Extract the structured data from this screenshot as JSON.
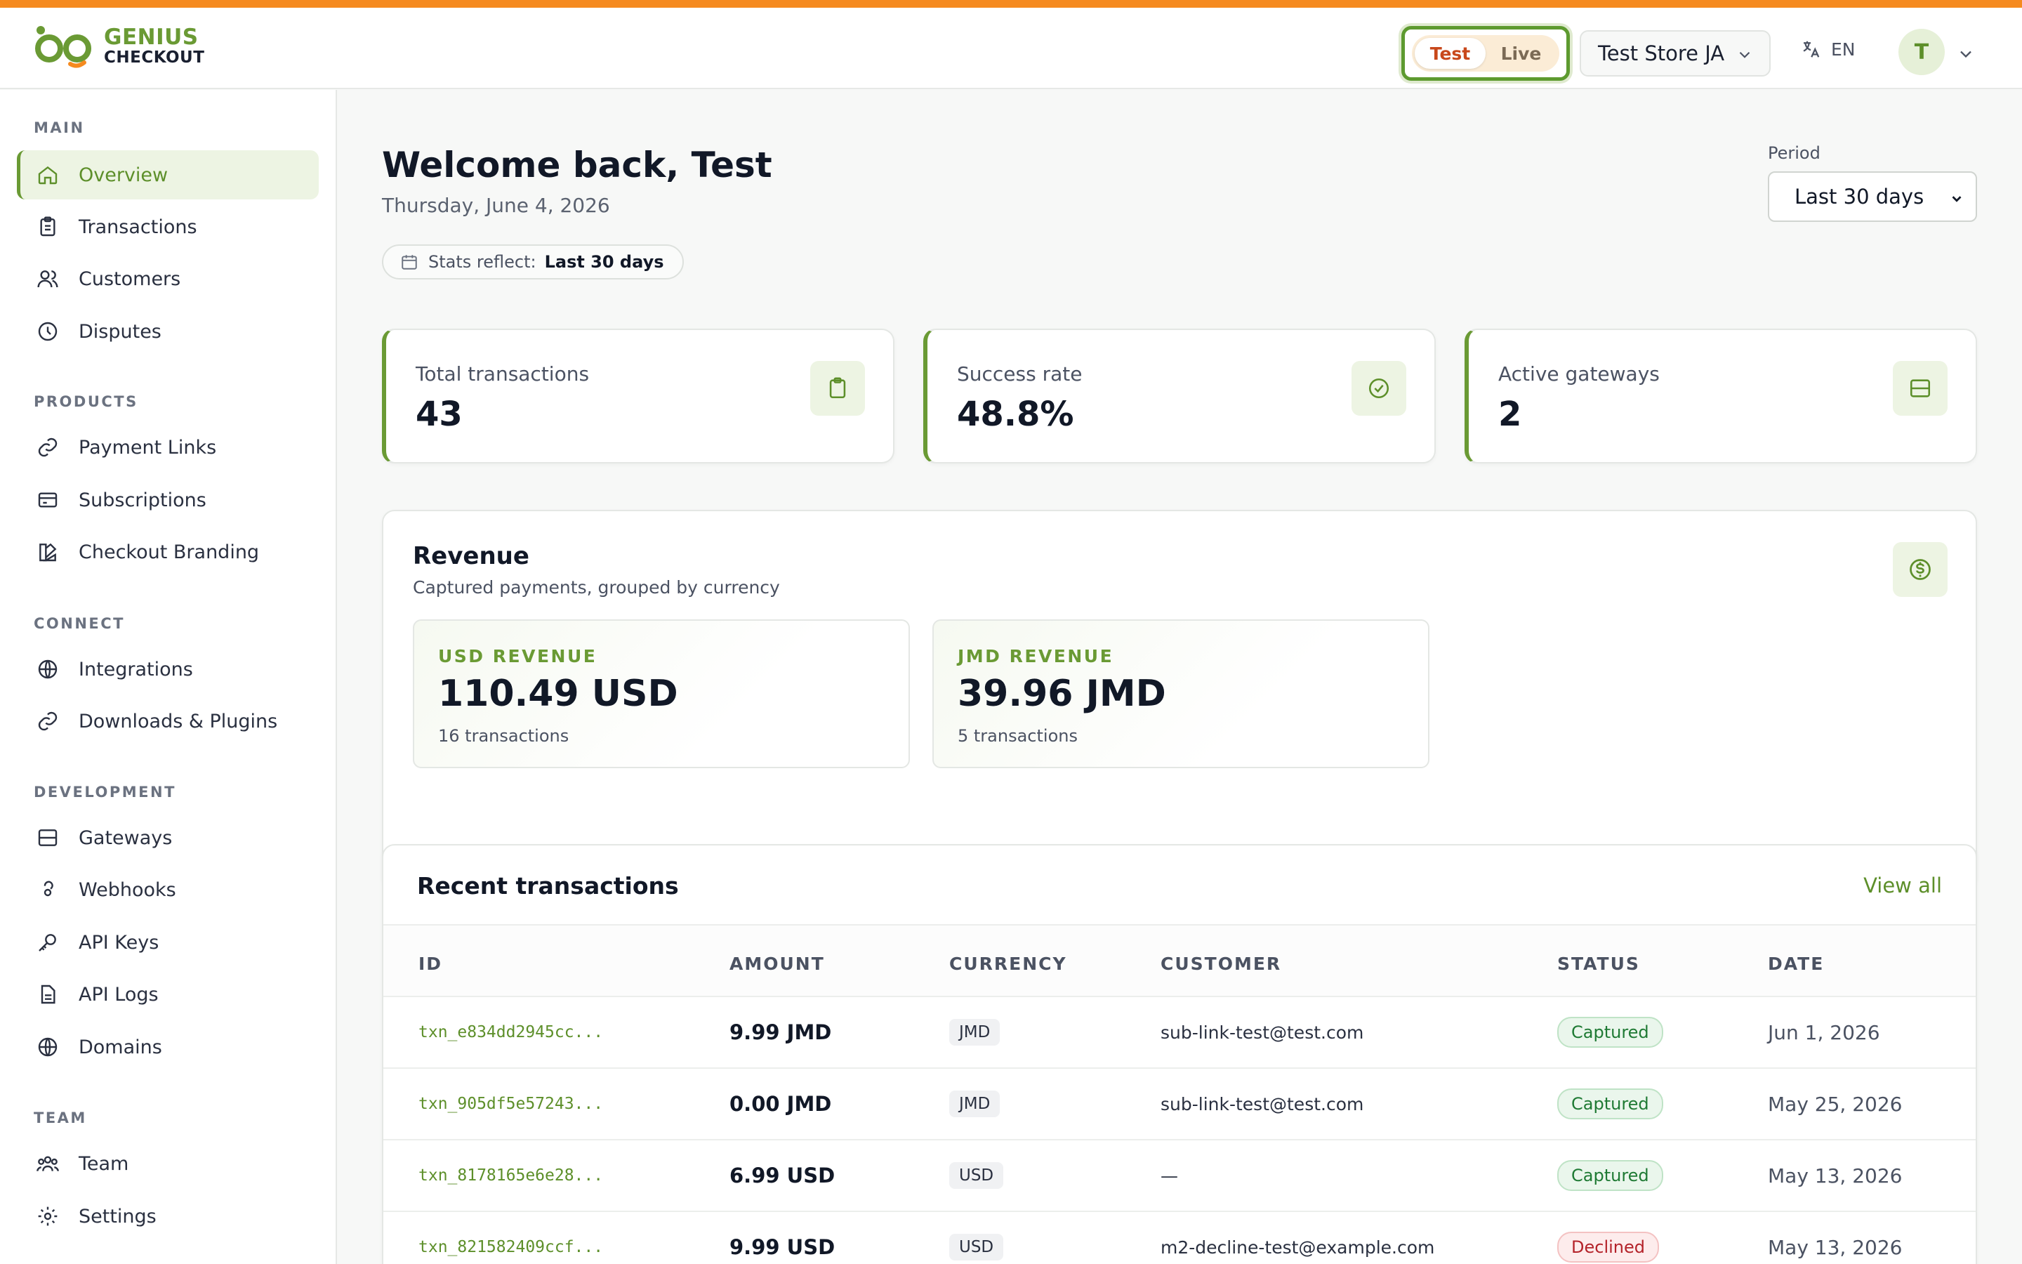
{
  "brand": {
    "line1": "GENIUS",
    "line2": "CHECKOUT"
  },
  "header": {
    "mode_test": "Test",
    "mode_live": "Live",
    "store": "Test Store JA",
    "lang": "EN",
    "avatar_initial": "T"
  },
  "sidebar": {
    "sections": [
      {
        "label": "MAIN",
        "items": [
          {
            "label": "Overview",
            "icon": "home-icon",
            "active": true
          },
          {
            "label": "Transactions",
            "icon": "clipboard-icon"
          },
          {
            "label": "Customers",
            "icon": "users-icon"
          },
          {
            "label": "Disputes",
            "icon": "clock-icon"
          }
        ]
      },
      {
        "label": "PRODUCTS",
        "items": [
          {
            "label": "Payment Links",
            "icon": "link-icon"
          },
          {
            "label": "Subscriptions",
            "icon": "card-icon"
          },
          {
            "label": "Checkout Branding",
            "icon": "palette-icon"
          }
        ]
      },
      {
        "label": "CONNECT",
        "items": [
          {
            "label": "Integrations",
            "icon": "globe-icon"
          },
          {
            "label": "Downloads & Plugins",
            "icon": "link-icon"
          }
        ]
      },
      {
        "label": "DEVELOPMENT",
        "items": [
          {
            "label": "Gateways",
            "icon": "server-icon"
          },
          {
            "label": "Webhooks",
            "icon": "webhook-icon"
          },
          {
            "label": "API Keys",
            "icon": "key-icon"
          },
          {
            "label": "API Logs",
            "icon": "file-icon"
          },
          {
            "label": "Domains",
            "icon": "globe-icon"
          }
        ]
      },
      {
        "label": "TEAM",
        "items": [
          {
            "label": "Team",
            "icon": "team-icon"
          },
          {
            "label": "Settings",
            "icon": "gear-icon"
          }
        ]
      }
    ]
  },
  "main": {
    "welcome": "Welcome back, Test",
    "date": "Thursday, June 4, 2026",
    "stats_reflect_label": "Stats reflect:",
    "stats_reflect_value": "Last 30 days",
    "period_label": "Period",
    "period_value": "Last 30 days",
    "stats": [
      {
        "label": "Total transactions",
        "value": "43",
        "icon": "clipboard-icon"
      },
      {
        "label": "Success rate",
        "value": "48.8%",
        "icon": "check-circle-icon"
      },
      {
        "label": "Active gateways",
        "value": "2",
        "icon": "server-icon"
      }
    ],
    "revenue": {
      "title": "Revenue",
      "subtitle": "Captured payments, grouped by currency",
      "icon": "dollar-icon",
      "currencies": [
        {
          "label": "USD REVENUE",
          "value": "110.49 USD",
          "count": "16 transactions"
        },
        {
          "label": "JMD REVENUE",
          "value": "39.96 JMD",
          "count": "5 transactions"
        }
      ]
    },
    "transactions": {
      "title": "Recent transactions",
      "view_all": "View all",
      "columns": [
        "ID",
        "AMOUNT",
        "CURRENCY",
        "CUSTOMER",
        "STATUS",
        "DATE"
      ],
      "rows": [
        {
          "id": "txn_e834dd2945cc...",
          "amount": "9.99 JMD",
          "currency": "JMD",
          "customer": "sub-link-test@test.com",
          "status": "Captured",
          "date": "Jun 1, 2026"
        },
        {
          "id": "txn_905df5e57243...",
          "amount": "0.00 JMD",
          "currency": "JMD",
          "customer": "sub-link-test@test.com",
          "status": "Captured",
          "date": "May 25, 2026"
        },
        {
          "id": "txn_8178165e6e28...",
          "amount": "6.99 USD",
          "currency": "USD",
          "customer": "—",
          "status": "Captured",
          "date": "May 13, 2026"
        },
        {
          "id": "txn_821582409ccf...",
          "amount": "9.99 USD",
          "currency": "USD",
          "customer": "m2-decline-test@example.com",
          "status": "Declined",
          "date": "May 13, 2026"
        }
      ]
    }
  },
  "colors": {
    "accent": "#6a9a34",
    "top_stripe": "#f58a1f",
    "captured": "#1f7a34",
    "declined": "#b4232a"
  }
}
